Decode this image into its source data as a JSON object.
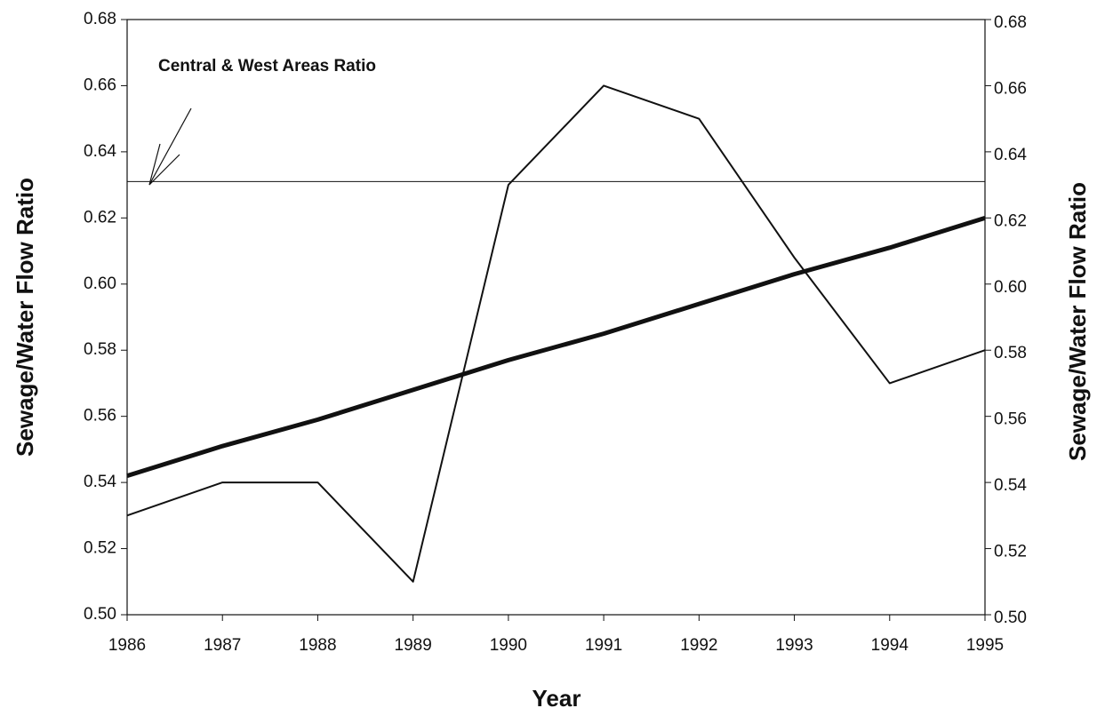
{
  "chart_data": {
    "type": "line",
    "annotation": "Central & West Areas Ratio",
    "xlabel": "Year",
    "ylabel": "Sewage/Water Flow Ratio",
    "y2label": "Sewage/Water Flow Ratio",
    "x": [
      1986,
      1987,
      1988,
      1989,
      1990,
      1991,
      1992,
      1993,
      1994,
      1995
    ],
    "xlim": [
      1986,
      1995
    ],
    "xticks": [
      1986,
      1987,
      1988,
      1989,
      1990,
      1991,
      1992,
      1993,
      1994,
      1995
    ],
    "ylim": [
      0.5,
      0.68
    ],
    "yticks": [
      {
        "value": 0.5,
        "label": "0.50"
      },
      {
        "value": 0.52,
        "label": "0.52"
      },
      {
        "value": 0.54,
        "label": "0.54"
      },
      {
        "value": 0.56,
        "label": "0.56"
      },
      {
        "value": 0.58,
        "label": "0.58"
      },
      {
        "value": 0.6,
        "label": "0.60"
      },
      {
        "value": 0.62,
        "label": "0.62"
      },
      {
        "value": 0.64,
        "label": "0.64"
      },
      {
        "value": 0.66,
        "label": "0.66"
      },
      {
        "value": 0.68,
        "label": "0.68"
      }
    ],
    "y2lim": [
      0.5,
      0.68
    ],
    "y2ticks": [
      {
        "value": 0.5,
        "label": "0.50"
      },
      {
        "value": 0.52,
        "label": "0.52"
      },
      {
        "value": 0.54,
        "label": "0.54"
      },
      {
        "value": 0.56,
        "label": "0.56"
      },
      {
        "value": 0.58,
        "label": "0.58"
      },
      {
        "value": 0.6,
        "label": "0.60"
      },
      {
        "value": 0.62,
        "label": "0.62"
      },
      {
        "value": 0.64,
        "label": "0.64"
      },
      {
        "value": 0.66,
        "label": "0.66"
      },
      {
        "value": 0.68,
        "label": "0.68"
      }
    ],
    "series": [
      {
        "color": "#111111",
        "width": 2,
        "values": [
          0.53,
          0.54,
          0.54,
          0.51,
          0.63,
          0.66,
          0.65,
          0.608,
          0.57,
          0.58
        ]
      },
      {
        "color": "#111111",
        "width": 5,
        "values": [
          0.542,
          0.551,
          0.559,
          0.568,
          0.577,
          0.585,
          0.594,
          0.603,
          0.611,
          0.62
        ]
      },
      {
        "color": "#111111",
        "width": 1,
        "values": [
          0.631,
          0.631,
          0.631,
          0.631,
          0.631,
          0.631,
          0.631,
          0.631,
          0.631,
          0.631
        ]
      }
    ]
  }
}
